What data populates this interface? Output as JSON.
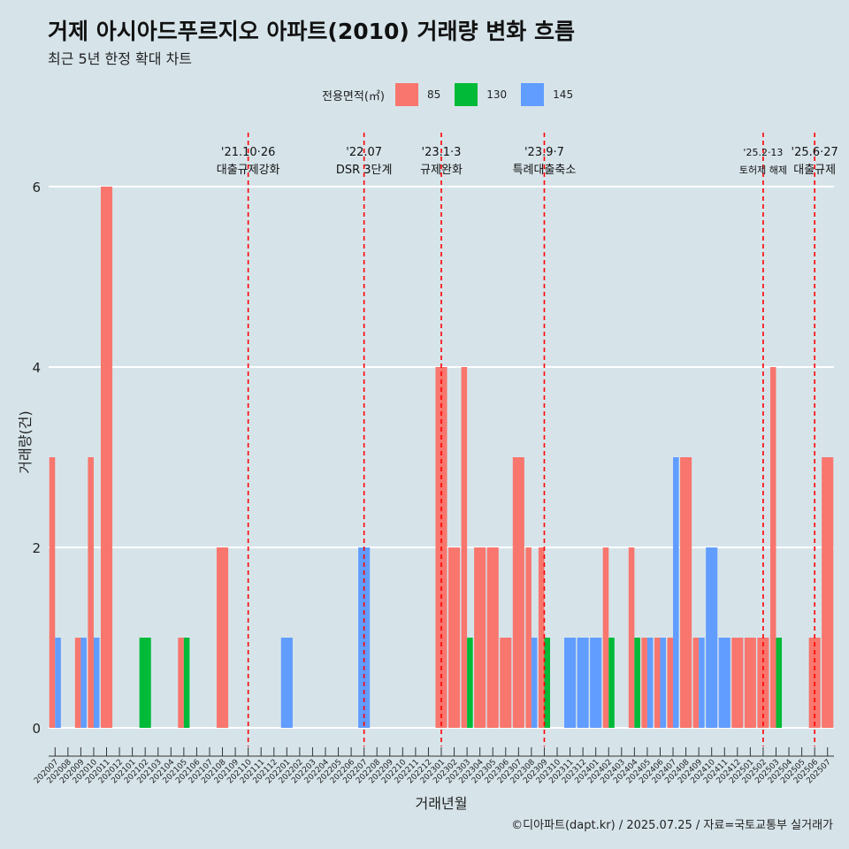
{
  "title": "거제 아시아드푸르지오 아파트(2010) 거래량 변화 흐름",
  "subtitle": "최근 5년 한정 확대 차트",
  "caption": "©디아파트(dapt.kr) / 2025.07.25 / 자료=국토교통부 실거래가",
  "legend": {
    "title": "전용면적(㎡)",
    "items": [
      {
        "label": "85",
        "color": "#f8766d"
      },
      {
        "label": "130",
        "color": "#00ba38"
      },
      {
        "label": "145",
        "color": "#619cff"
      }
    ]
  },
  "chart_data": {
    "type": "bar",
    "xlabel": "거래년월",
    "ylabel": "거래량(건)",
    "ylim": [
      0,
      6
    ],
    "yticks": [
      0,
      2,
      4,
      6
    ],
    "grid": true,
    "legend_position": "top",
    "categories": [
      "202007",
      "202008",
      "202009",
      "202010",
      "202011",
      "202012",
      "202101",
      "202102",
      "202103",
      "202104",
      "202105",
      "202106",
      "202107",
      "202108",
      "202109",
      "202110",
      "202111",
      "202112",
      "202201",
      "202202",
      "202203",
      "202204",
      "202205",
      "202206",
      "202207",
      "202208",
      "202209",
      "202210",
      "202211",
      "202212",
      "202301",
      "202302",
      "202303",
      "202304",
      "202305",
      "202306",
      "202307",
      "202308",
      "202309",
      "202310",
      "202311",
      "202312",
      "202401",
      "202402",
      "202403",
      "202404",
      "202405",
      "202406",
      "202407",
      "202408",
      "202409",
      "202410",
      "202411",
      "202412",
      "202501",
      "202502",
      "202503",
      "202504",
      "202505",
      "202506",
      "202507"
    ],
    "series": [
      {
        "name": "85",
        "color": "#f8766d",
        "values": [
          3,
          0,
          1,
          3,
          6,
          0,
          0,
          0,
          0,
          0,
          1,
          0,
          0,
          2,
          0,
          0,
          0,
          0,
          0,
          0,
          0,
          0,
          0,
          0,
          0,
          0,
          0,
          0,
          0,
          0,
          4,
          2,
          4,
          2,
          2,
          1,
          3,
          2,
          2,
          0,
          0,
          0,
          0,
          2,
          0,
          2,
          1,
          1,
          1,
          3,
          1,
          0,
          0,
          1,
          1,
          1,
          4,
          0,
          0,
          1,
          3
        ]
      },
      {
        "name": "130",
        "color": "#00ba38",
        "values": [
          0,
          0,
          0,
          0,
          0,
          0,
          0,
          1,
          0,
          0,
          1,
          0,
          0,
          0,
          0,
          0,
          0,
          0,
          0,
          0,
          0,
          0,
          0,
          0,
          0,
          0,
          0,
          0,
          0,
          0,
          0,
          0,
          1,
          0,
          0,
          0,
          0,
          0,
          1,
          0,
          0,
          0,
          0,
          1,
          0,
          1,
          0,
          0,
          0,
          0,
          0,
          0,
          0,
          0,
          0,
          0,
          1,
          0,
          0,
          0,
          0
        ]
      },
      {
        "name": "145",
        "color": "#619cff",
        "values": [
          1,
          0,
          1,
          1,
          0,
          0,
          0,
          0,
          0,
          0,
          0,
          0,
          0,
          0,
          0,
          0,
          0,
          0,
          1,
          0,
          0,
          0,
          0,
          0,
          2,
          0,
          0,
          0,
          0,
          0,
          0,
          0,
          0,
          0,
          0,
          0,
          0,
          1,
          0,
          0,
          1,
          1,
          1,
          0,
          0,
          0,
          1,
          1,
          3,
          0,
          1,
          2,
          1,
          0,
          0,
          0,
          0,
          0,
          0,
          0,
          0
        ]
      }
    ],
    "annotations": [
      {
        "position": "202110",
        "date": "'21.10·26",
        "label": "대출규제강화"
      },
      {
        "position": "202207",
        "date": "'22.07",
        "label": "DSR 3단계"
      },
      {
        "position": "202301",
        "date": "'23.1·3",
        "label": "규제완화"
      },
      {
        "position": "202309",
        "date": "'23.9·7",
        "label": "특례대출축소"
      },
      {
        "position": "202502",
        "date": "'25.2·13",
        "label": "토허제 해제"
      },
      {
        "position": "202506",
        "date": "'25.6·27",
        "label": "대출규제"
      }
    ]
  }
}
